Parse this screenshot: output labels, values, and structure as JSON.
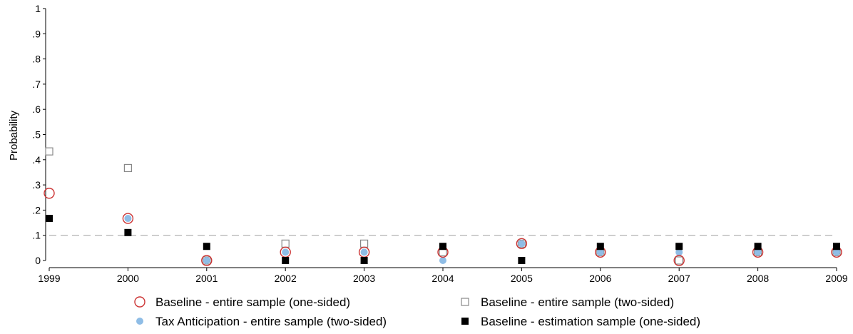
{
  "chart_data": {
    "type": "scatter",
    "title": "",
    "xlabel": "",
    "ylabel": "Probability",
    "x": [
      1999,
      2000,
      2001,
      2002,
      2003,
      2004,
      2005,
      2006,
      2007,
      2008,
      2009
    ],
    "x_tick_labels": [
      "1999",
      "2000",
      "2001",
      "2002",
      "2003",
      "2004",
      "2005",
      "2006",
      "2007",
      "2008",
      "2009"
    ],
    "y_ticks": [
      0,
      0.1,
      0.2,
      0.3,
      0.4,
      0.5,
      0.6,
      0.7,
      0.8,
      0.9,
      1
    ],
    "y_tick_labels": [
      "0",
      ".1",
      ".2",
      ".3",
      ".4",
      ".5",
      ".6",
      ".7",
      ".8",
      ".9",
      "1"
    ],
    "xlim": [
      1999,
      2009
    ],
    "ylim": [
      0,
      1
    ],
    "reference_line": {
      "y": 0.1,
      "style": "dashed",
      "color": "#aaaaaa"
    },
    "grid": false,
    "legend_position": "bottom",
    "series": [
      {
        "name": "Baseline - entire sample (one-sided)",
        "marker": "hollow-circle",
        "color": "#cc3333",
        "values": [
          0.267,
          0.167,
          0.0,
          0.033,
          0.033,
          0.033,
          0.067,
          0.033,
          0.0,
          0.033,
          0.033
        ]
      },
      {
        "name": "Baseline - entire sample (two-sided)",
        "marker": "hollow-square",
        "color": "#888888",
        "values": [
          0.433,
          0.367,
          0.0,
          0.067,
          0.067,
          0.033,
          0.067,
          0.033,
          0.0,
          0.033,
          0.033
        ]
      },
      {
        "name": "Tax Anticipation - entire sample (two-sided)",
        "marker": "filled-circle",
        "color": "#8fbde6",
        "values": [
          null,
          0.167,
          0.0,
          0.033,
          0.033,
          0.0,
          0.067,
          0.033,
          0.033,
          0.033,
          0.033
        ]
      },
      {
        "name": "Baseline - estimation sample (one-sided)",
        "marker": "filled-square",
        "color": "#000000",
        "values": [
          0.167,
          0.111,
          0.056,
          0.0,
          0.0,
          0.056,
          0.0,
          0.056,
          0.056,
          0.056,
          0.056
        ]
      }
    ]
  }
}
